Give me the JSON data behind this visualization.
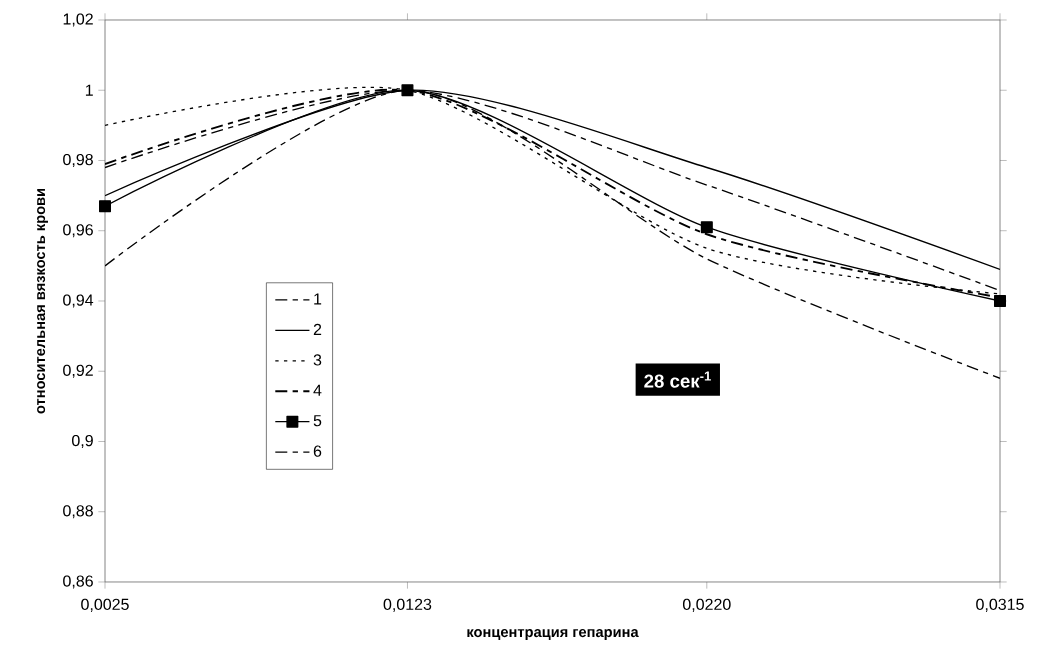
{
  "chart_data": {
    "type": "line",
    "xlabel": "концентрация  гепарина",
    "ylabel": "относительная  вязкость  крови",
    "x": [
      0.0025,
      0.0123,
      0.022,
      0.0315
    ],
    "xlim": [
      0.0025,
      0.0315
    ],
    "xticks": [
      {
        "value": 0.0025,
        "label": "0,0025"
      },
      {
        "value": 0.0123,
        "label": "0,0123"
      },
      {
        "value": 0.022,
        "label": "0,0220"
      },
      {
        "value": 0.0315,
        "label": "0,0315"
      }
    ],
    "ylim": [
      0.86,
      1.02
    ],
    "yticks": [
      {
        "value": 0.86,
        "label": "0,86"
      },
      {
        "value": 0.88,
        "label": "0,88"
      },
      {
        "value": 0.9,
        "label": "0,9"
      },
      {
        "value": 0.92,
        "label": "0,92"
      },
      {
        "value": 0.94,
        "label": "0,94"
      },
      {
        "value": 0.96,
        "label": "0,96"
      },
      {
        "value": 0.98,
        "label": "0,98"
      },
      {
        "value": 1,
        "label": "1"
      },
      {
        "value": 1.02,
        "label": "1,02"
      }
    ],
    "series": [
      {
        "name": "1",
        "color": "#000000",
        "line_style": "dashed",
        "values": [
          0.95,
          1.0,
          0.952,
          0.918
        ]
      },
      {
        "name": "2",
        "color": "#000000",
        "line_style": "solid",
        "values": [
          0.97,
          1.0,
          0.978,
          0.949
        ]
      },
      {
        "name": "3",
        "color": "#000000",
        "line_style": "dotted",
        "values": [
          0.99,
          1.0,
          0.955,
          0.942
        ]
      },
      {
        "name": "4",
        "color": "#000000",
        "line_style": "dashed",
        "values": [
          0.979,
          1.0,
          0.959,
          0.941
        ]
      },
      {
        "name": "5",
        "color": "#000000",
        "line_style": "solid",
        "marker": "square",
        "values": [
          0.967,
          1.0,
          0.961,
          0.94
        ]
      },
      {
        "name": "6",
        "color": "#000000",
        "line_style": "dashed",
        "values": [
          0.978,
          1.0,
          0.973,
          0.943
        ]
      }
    ],
    "legend": "left",
    "annotations": [
      "28 сек$^{-1}$"
    ]
  }
}
